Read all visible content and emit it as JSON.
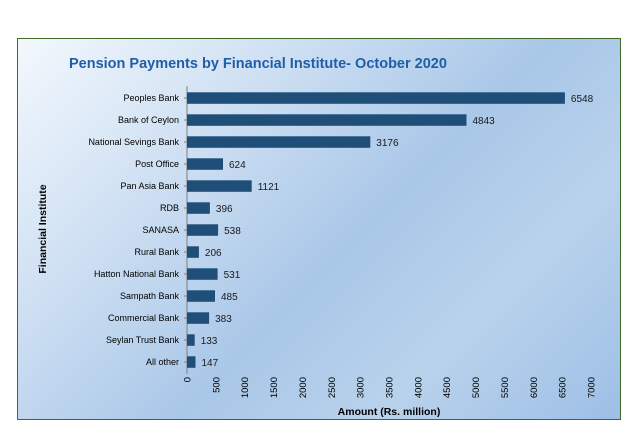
{
  "chart_data": {
    "type": "bar",
    "orientation": "horizontal",
    "title": "Pension Payments by Financial Institute- October 2020",
    "xlabel": "Amount (Rs. million)",
    "ylabel": "Financial Institute",
    "xlim": [
      0,
      7000
    ],
    "x_ticks": [
      0,
      500,
      1000,
      1500,
      2000,
      2500,
      3000,
      3500,
      4000,
      4500,
      5000,
      5500,
      6000,
      6500,
      7000
    ],
    "categories": [
      "Peoples Bank",
      "Bank of Ceylon",
      "National Sevings Bank",
      "Post Office",
      "Pan Asia Bank",
      "RDB",
      "SANASA",
      "Rural Bank",
      "Hatton National Bank",
      "Sampath Bank",
      "Commercial Bank",
      "Seylan Trust Bank",
      "All other"
    ],
    "values": [
      6548,
      4843,
      3176,
      624,
      1121,
      396,
      538,
      206,
      531,
      485,
      383,
      133,
      147
    ],
    "bar_color": "#1f4e79",
    "grid": false,
    "legend": "none"
  }
}
